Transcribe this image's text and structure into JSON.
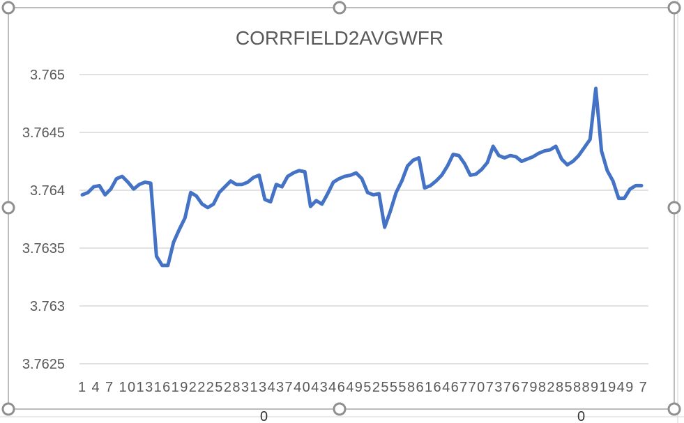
{
  "chart_data": {
    "type": "line",
    "title": "CORRFIELD2AVGWFR",
    "xlabel": "",
    "ylabel": "",
    "ylim": [
      3.7625,
      3.765
    ],
    "yticks": [
      "3.7625",
      "3.763",
      "3.7635",
      "3.764",
      "3.7645",
      "3.765"
    ],
    "xtick_labels": "1 4 7 10131619222528313437404346495255586164677073767982858891949 7",
    "grid": "horizontal",
    "legend": "none",
    "series_color": "#4472C4",
    "x": [
      1,
      2,
      3,
      4,
      5,
      6,
      7,
      8,
      9,
      10,
      11,
      12,
      13,
      14,
      15,
      16,
      17,
      18,
      19,
      20,
      21,
      22,
      23,
      24,
      25,
      26,
      27,
      28,
      29,
      30,
      31,
      32,
      33,
      34,
      35,
      36,
      37,
      38,
      39,
      40,
      41,
      42,
      43,
      44,
      45,
      46,
      47,
      48,
      49,
      50,
      51,
      52,
      53,
      54,
      55,
      56,
      57,
      58,
      59,
      60,
      61,
      62,
      63,
      64,
      65,
      66,
      67,
      68,
      69,
      70,
      71,
      72,
      73,
      74,
      75,
      76,
      77,
      78,
      79,
      80,
      81,
      82,
      83,
      84,
      85,
      86,
      87,
      88,
      89,
      90,
      91,
      92,
      93,
      94,
      95,
      96,
      97,
      98,
      99
    ],
    "series": [
      {
        "values": [
          3.76396,
          3.76398,
          3.76403,
          3.76404,
          3.76396,
          3.76401,
          3.7641,
          3.76412,
          3.76407,
          3.76401,
          3.76405,
          3.76407,
          3.76406,
          3.76343,
          3.76335,
          3.76335,
          3.76355,
          3.76366,
          3.76376,
          3.76398,
          3.76395,
          3.76388,
          3.76385,
          3.76388,
          3.76398,
          3.76403,
          3.76408,
          3.76405,
          3.76405,
          3.76407,
          3.76411,
          3.76413,
          3.76392,
          3.7639,
          3.76405,
          3.76403,
          3.76412,
          3.76415,
          3.76417,
          3.76416,
          3.76386,
          3.76391,
          3.76388,
          3.76397,
          3.76407,
          3.7641,
          3.76412,
          3.76413,
          3.76415,
          3.7641,
          3.76398,
          3.76396,
          3.76397,
          3.76368,
          3.76382,
          3.76398,
          3.76408,
          3.76421,
          3.76426,
          3.76428,
          3.76402,
          3.76404,
          3.76408,
          3.76413,
          3.76421,
          3.76431,
          3.7643,
          3.76423,
          3.76413,
          3.76414,
          3.76418,
          3.76424,
          3.76438,
          3.7643,
          3.76428,
          3.7643,
          3.76429,
          3.76425,
          3.76427,
          3.76429,
          3.76432,
          3.76434,
          3.76435,
          3.76438,
          3.76427,
          3.76422,
          3.76425,
          3.7643,
          3.76437,
          3.76444,
          3.76488,
          3.76434,
          3.76417,
          3.76408,
          3.76393,
          3.76393,
          3.76401,
          3.76404,
          3.76404
        ]
      }
    ]
  },
  "sheet": {
    "under_cell_a": "0",
    "under_cell_b": "0"
  }
}
